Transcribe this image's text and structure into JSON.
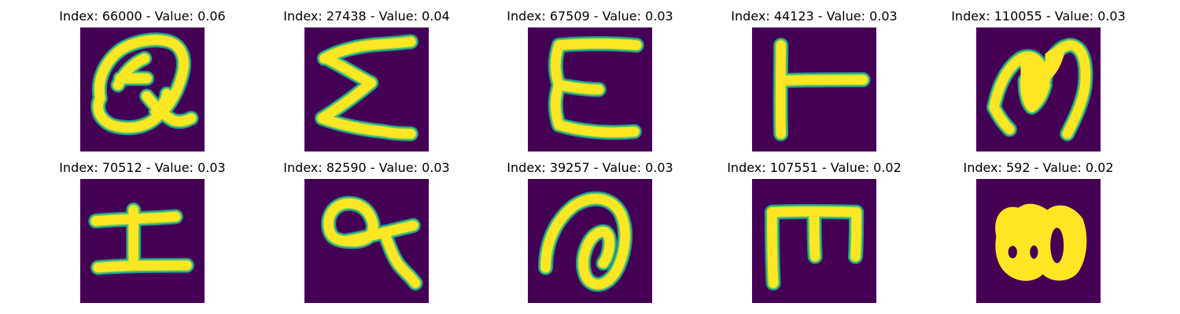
{
  "colors": {
    "background": "#440154",
    "ink": "#fde725",
    "edge_outer": "#21918c",
    "edge_inner": "#5ec962"
  },
  "panels": [
    {
      "title": "Index: 66000 - Value: 0.06"
    },
    {
      "title": "Index: 27438 - Value: 0.04"
    },
    {
      "title": "Index: 67509 - Value: 0.03"
    },
    {
      "title": "Index: 44123 - Value: 0.03"
    },
    {
      "title": "Index: 110055 - Value: 0.03"
    },
    {
      "title": "Index: 70512 - Value: 0.03"
    },
    {
      "title": "Index: 82590 - Value: 0.03"
    },
    {
      "title": "Index: 39257 - Value: 0.03"
    },
    {
      "title": "Index: 107551 - Value: 0.02"
    },
    {
      "title": "Index: 592 - Value: 0.02"
    }
  ]
}
